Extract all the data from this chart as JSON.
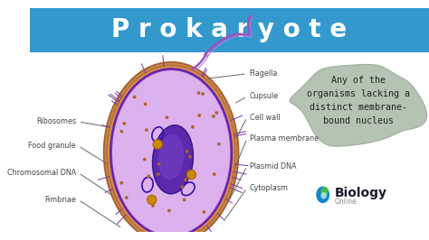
{
  "title": "P r o k a r y o t e",
  "title_color": "white",
  "title_bg": "#3399cc",
  "bg_color": "white",
  "annotation_color": "#444444",
  "line_color": "#666666",
  "description_bg": "#aabba8",
  "description_text": "Any of the\norganisms lacking a\ndistinct membrane-\nbound nucleus",
  "description_color": "#222222",
  "biology_text": "Biology",
  "online_text": "Online"
}
